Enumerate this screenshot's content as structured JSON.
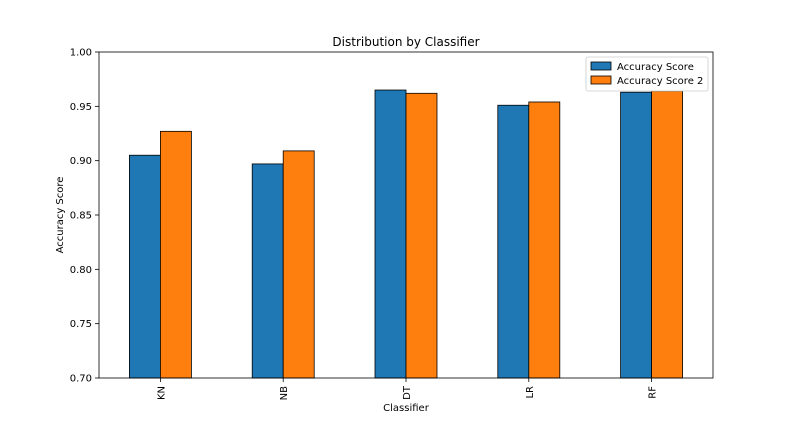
{
  "chart_data": {
    "type": "bar",
    "title": "Distribution by Classifier",
    "xlabel": "Classifier",
    "ylabel": "Accuracy Score",
    "categories": [
      "KN",
      "NB",
      "DT",
      "LR",
      "RF"
    ],
    "series": [
      {
        "name": "Accuracy Score",
        "color": "#1f77b4",
        "values": [
          0.905,
          0.897,
          0.965,
          0.951,
          0.963
        ]
      },
      {
        "name": "Accuracy Score 2",
        "color": "#ff7f0e",
        "values": [
          0.927,
          0.909,
          0.962,
          0.954,
          0.964
        ]
      }
    ],
    "ylim": [
      0.7,
      1.0
    ],
    "yticks": [
      "0.70",
      "0.75",
      "0.80",
      "0.85",
      "0.90",
      "0.95",
      "1.00"
    ],
    "grid": false,
    "legend_position": "top-right",
    "x_tick_rotation": "vertical"
  }
}
